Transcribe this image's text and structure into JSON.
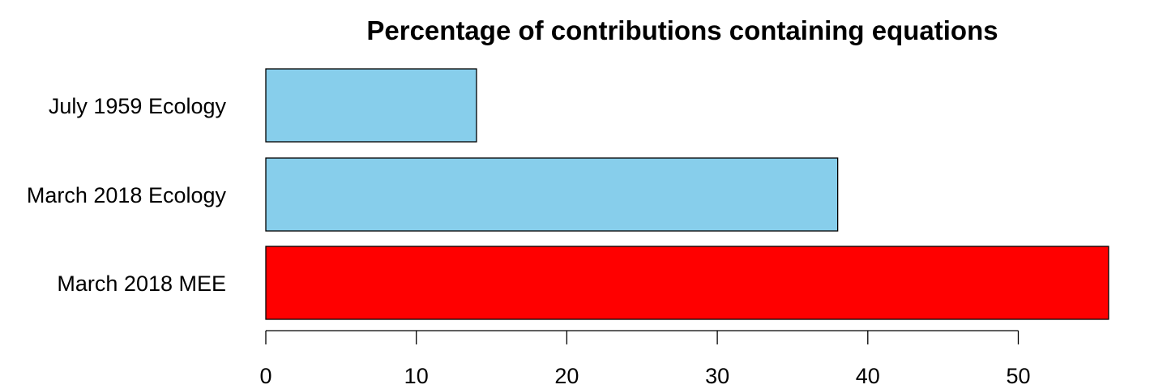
{
  "chart_data": {
    "type": "bar",
    "orientation": "horizontal",
    "title": "Percentage of contributions containing equations",
    "xlabel": "",
    "ylabel": "",
    "categories": [
      "July 1959 Ecology",
      "March 2018 Ecology",
      "March 2018 MEE"
    ],
    "values": [
      14,
      38,
      56
    ],
    "bar_colors": [
      "#87CEEB",
      "#87CEEB",
      "#FF0000"
    ],
    "bar_border_color": "#000000",
    "xlim": [
      0,
      56
    ],
    "x_ticks": [
      0,
      10,
      20,
      30,
      40,
      50
    ],
    "grid": false,
    "legend": "none"
  }
}
